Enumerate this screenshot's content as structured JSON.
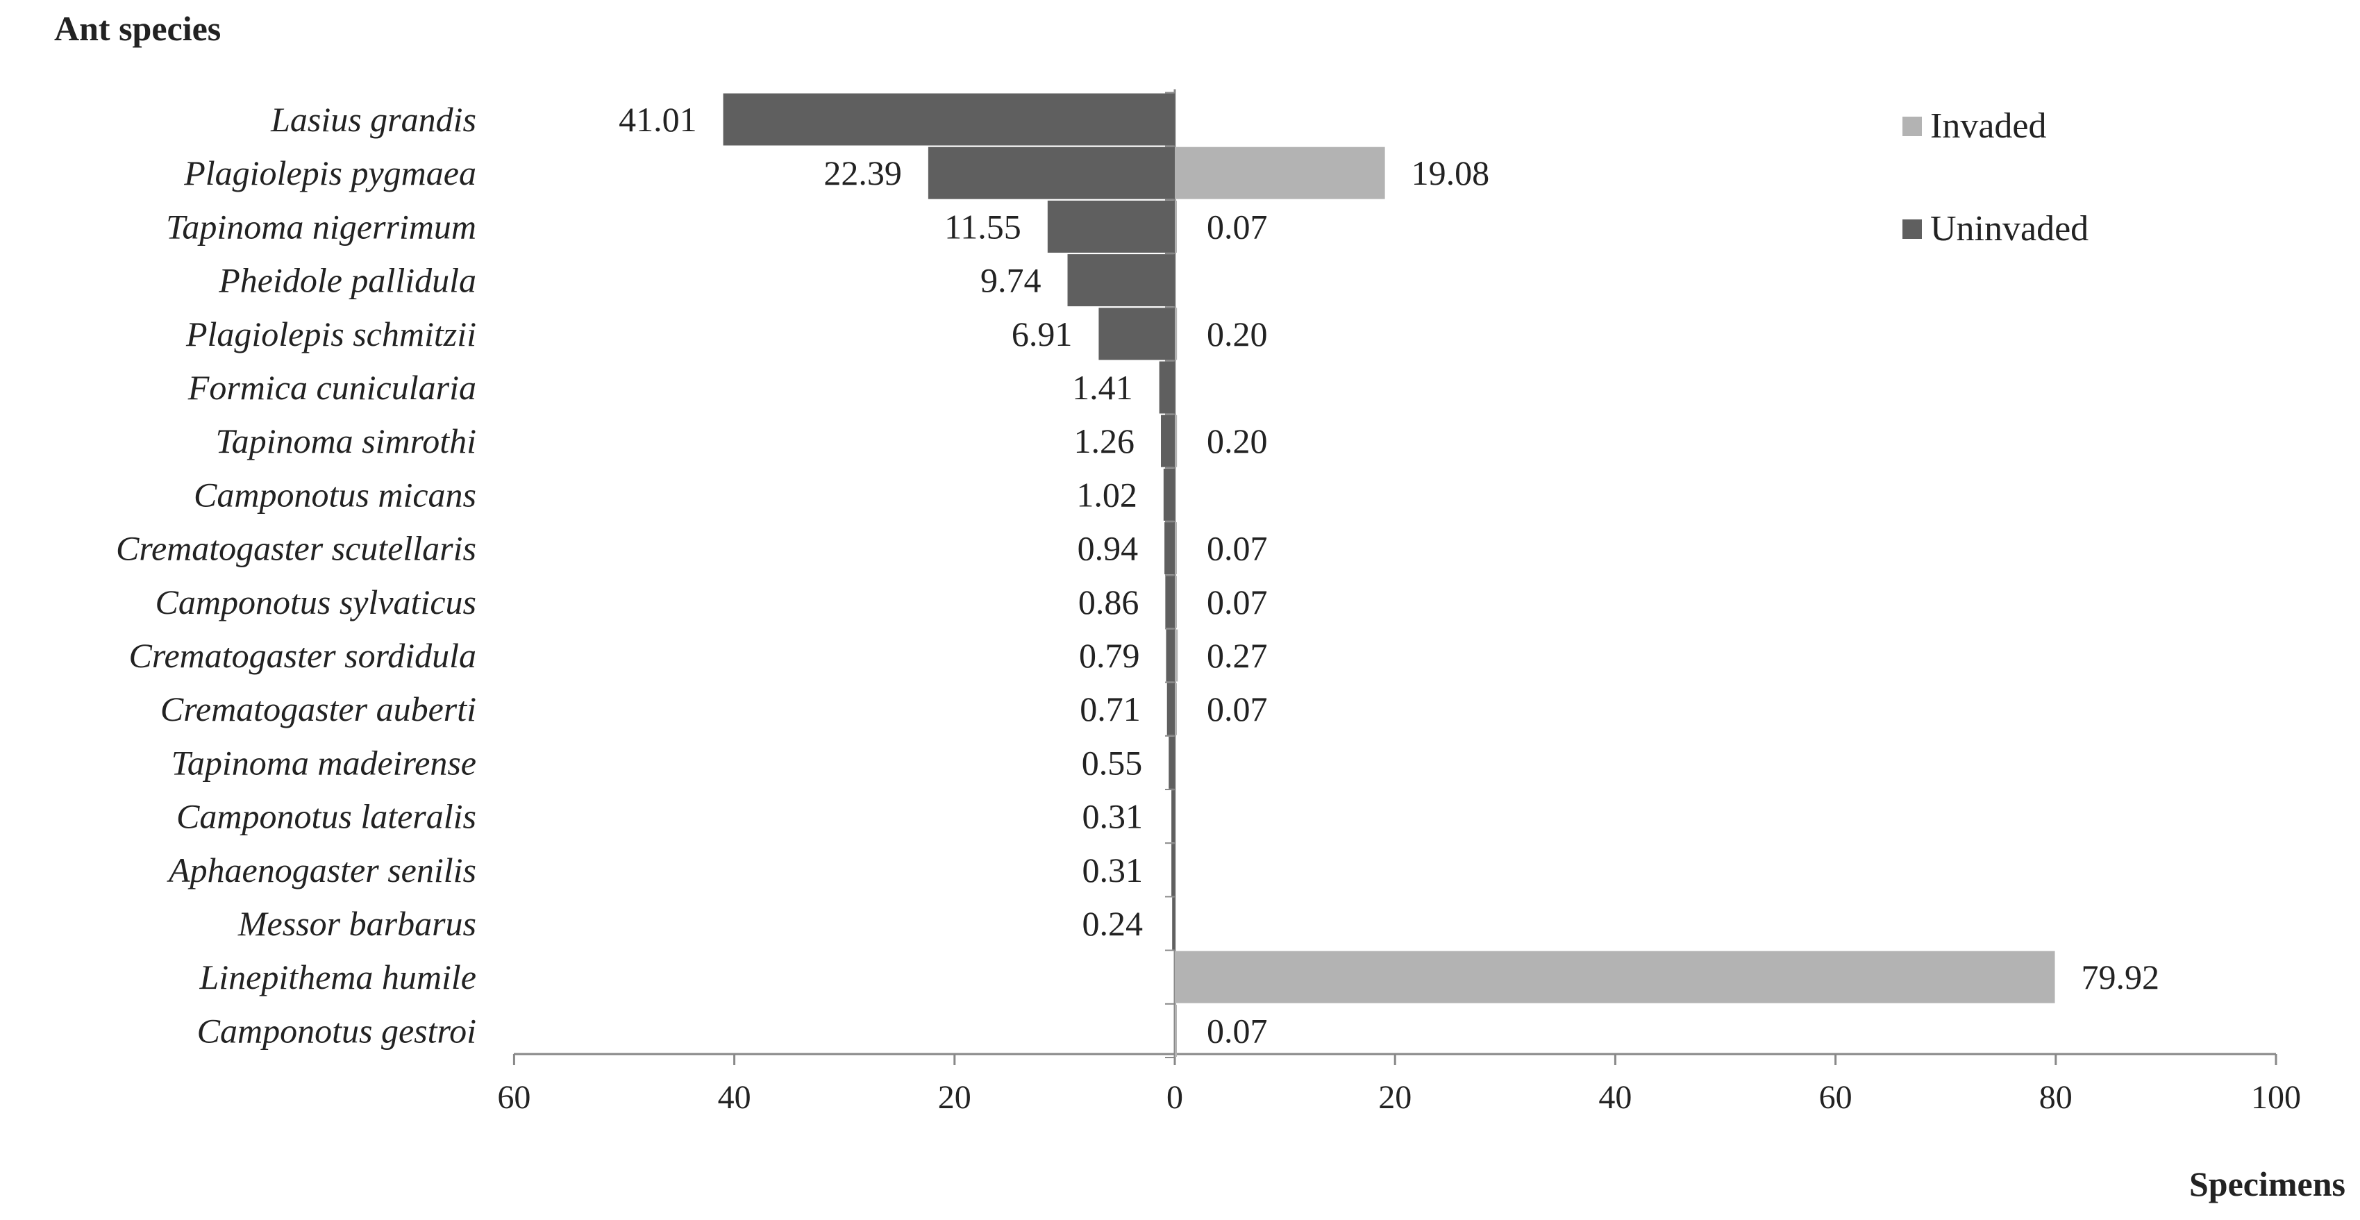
{
  "chart_data": {
    "type": "bar",
    "orientation": "horizontal",
    "layout": "back-to-back",
    "ylabel": "Ant species",
    "xlabel": "Specimens",
    "xlim": [
      -60,
      100
    ],
    "xticks": [
      -60,
      -40,
      -20,
      0,
      20,
      40,
      60,
      80,
      100
    ],
    "xtick_labels": [
      "60",
      "40",
      "20",
      "0",
      "20",
      "40",
      "60",
      "80",
      "100"
    ],
    "categories": [
      "Lasius grandis",
      "Plagiolepis pygmaea",
      "Tapinoma nigerrimum",
      "Pheidole pallidula",
      "Plagiolepis schmitzii",
      "Formica cunicularia",
      "Tapinoma simrothi",
      "Camponotus micans",
      "Crematogaster scutellaris",
      "Camponotus sylvaticus",
      "Crematogaster sordidula",
      "Crematogaster auberti",
      "Tapinoma madeirense",
      "Camponotus lateralis",
      "Aphaenogaster senilis",
      "Messor barbarus",
      "Linepithema humile",
      "Camponotus  gestroi"
    ],
    "series": [
      {
        "name": "Invaded",
        "side": "right",
        "color": "#b3b3b3",
        "values": [
          null,
          19.08,
          0.07,
          null,
          0.2,
          null,
          0.2,
          null,
          0.07,
          0.07,
          0.27,
          0.07,
          null,
          null,
          null,
          null,
          79.92,
          0.07
        ],
        "labels": [
          "",
          "19.08",
          "0.07",
          "",
          "0.20",
          "",
          "0.20",
          "",
          "0.07",
          "0.07",
          "0.27",
          "0.07",
          "",
          "",
          "",
          "",
          "79.92",
          "0.07"
        ]
      },
      {
        "name": "Uninvaded",
        "side": "left",
        "color": "#5f5f5f",
        "values": [
          41.01,
          22.39,
          11.55,
          9.74,
          6.91,
          1.41,
          1.26,
          1.02,
          0.94,
          0.86,
          0.79,
          0.71,
          0.55,
          0.31,
          0.31,
          0.24,
          null,
          null
        ],
        "labels": [
          "41.01",
          "22.39",
          "11.55",
          "9.74",
          "6.91",
          "1.41",
          "1.26",
          "1.02",
          "0.94",
          "0.86",
          "0.79",
          "0.71",
          "0.55",
          "0.31",
          "0.31",
          "0.24",
          "",
          ""
        ]
      }
    ],
    "legend": {
      "position": "top-right"
    },
    "grid": false,
    "axis_color": "#888888",
    "text_color": "#222222"
  }
}
